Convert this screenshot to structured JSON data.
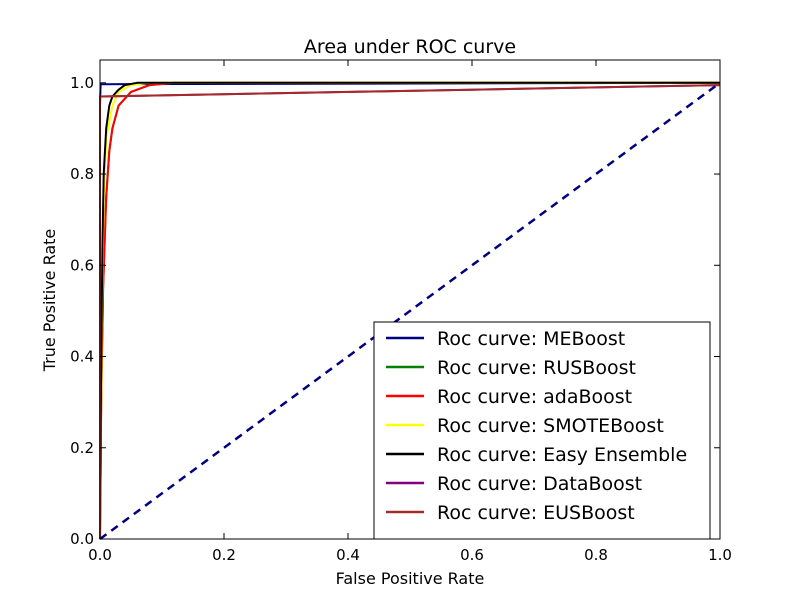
{
  "chart_data": {
    "type": "line",
    "title": "Area under ROC curve",
    "xlabel": "False Positive Rate",
    "ylabel": "True Positive Rate",
    "xlim": [
      0.0,
      1.0
    ],
    "ylim": [
      0.0,
      1.05
    ],
    "xticks": [
      0.0,
      0.2,
      0.4,
      0.6,
      0.8,
      1.0
    ],
    "yticks": [
      0.0,
      0.2,
      0.4,
      0.6,
      0.8,
      1.0
    ],
    "xtick_labels": [
      "0.0",
      "0.2",
      "0.4",
      "0.6",
      "0.8",
      "1.0"
    ],
    "ytick_labels": [
      "0.0",
      "0.2",
      "0.4",
      "0.6",
      "0.8",
      "1.0"
    ],
    "legend_location": "lower-right",
    "series": [
      {
        "name": "Roc curve: MEBoost",
        "color": "#000080",
        "x": [
          0.0,
          0.0,
          0.001,
          1.0
        ],
        "y": [
          0.0,
          0.95,
          0.997,
          1.0
        ]
      },
      {
        "name": "Roc curve: RUSBoost",
        "color": "#008000",
        "x": [
          0.0,
          0.002,
          0.005,
          0.01,
          0.015,
          0.02,
          0.03,
          0.05,
          0.08,
          0.12,
          1.0
        ],
        "y": [
          0.0,
          0.3,
          0.55,
          0.75,
          0.85,
          0.9,
          0.95,
          0.98,
          0.995,
          1.0,
          1.0
        ]
      },
      {
        "name": "Roc curve: adaBoost",
        "color": "#ff0000",
        "x": [
          0.0,
          0.002,
          0.005,
          0.01,
          0.015,
          0.02,
          0.03,
          0.05,
          0.08,
          0.12,
          1.0
        ],
        "y": [
          0.0,
          0.3,
          0.55,
          0.75,
          0.85,
          0.9,
          0.95,
          0.98,
          0.995,
          1.0,
          1.0
        ]
      },
      {
        "name": "Roc curve: SMOTEBoost",
        "color": "#ffff00",
        "x": [
          0.0,
          0.003,
          0.006,
          0.01,
          0.02,
          0.03,
          0.05,
          0.08,
          1.0
        ],
        "y": [
          0.0,
          0.5,
          0.75,
          0.88,
          0.95,
          0.98,
          0.995,
          1.0,
          1.0
        ]
      },
      {
        "name": "Roc curve: Easy Ensemble",
        "color": "#000000",
        "x": [
          0.0,
          0.002,
          0.004,
          0.006,
          0.01,
          0.015,
          0.02,
          0.03,
          0.04,
          0.06,
          1.0
        ],
        "y": [
          0.0,
          0.4,
          0.65,
          0.8,
          0.9,
          0.95,
          0.97,
          0.985,
          0.995,
          1.0,
          1.0
        ]
      },
      {
        "name": "Roc curve: DataBoost",
        "color": "#800080",
        "x": [
          0.0,
          0.0,
          0.2,
          0.4,
          0.6,
          0.8,
          1.0
        ],
        "y": [
          0.0,
          0.97,
          0.975,
          0.98,
          0.985,
          0.99,
          0.995
        ]
      },
      {
        "name": "Roc curve: EUSBoost",
        "color": "#a52a2a",
        "x": [
          0.0,
          0.0,
          1.0
        ],
        "y": [
          0.0,
          0.97,
          0.995
        ]
      },
      {
        "name": "chance",
        "color": "#000080",
        "dashed": true,
        "legend": false,
        "x": [
          0.0,
          1.0
        ],
        "y": [
          0.0,
          1.0
        ]
      }
    ]
  }
}
